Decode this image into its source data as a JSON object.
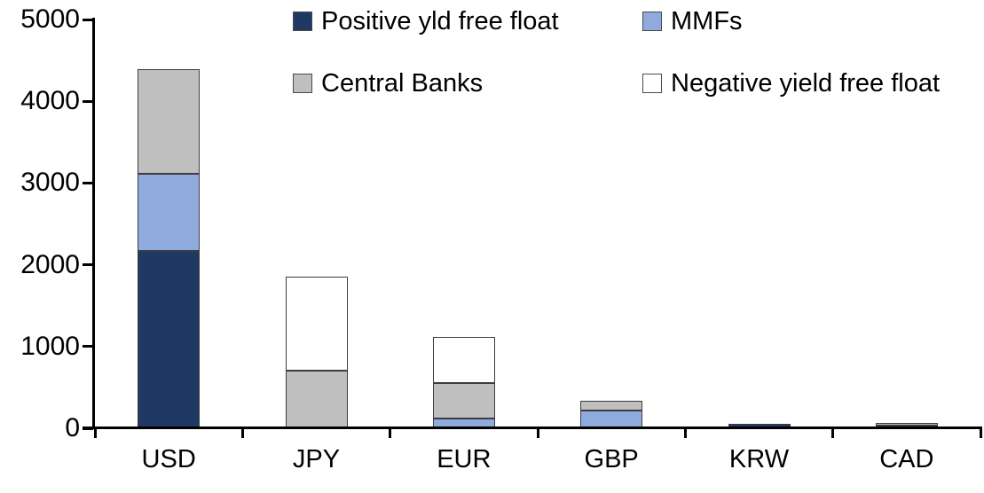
{
  "chart_data": {
    "type": "bar",
    "stacked": true,
    "title": "",
    "xlabel": "",
    "ylabel": "",
    "categories": [
      "USD",
      "JPY",
      "EUR",
      "GBP",
      "KRW",
      "CAD"
    ],
    "series": [
      {
        "name": "Positive yld free float",
        "color": "#1F3864",
        "values": [
          2170,
          0,
          0,
          0,
          50,
          35
        ]
      },
      {
        "name": "MMFs",
        "color": "#8FAADC",
        "values": [
          940,
          0,
          120,
          220,
          0,
          0
        ]
      },
      {
        "name": "Central Banks",
        "color": "#BFBFBF",
        "values": [
          1280,
          700,
          430,
          120,
          0,
          30
        ]
      },
      {
        "name": "Negative yield free float",
        "color": "#FFFFFF",
        "values": [
          0,
          1150,
          570,
          0,
          0,
          0
        ]
      }
    ],
    "totals": {
      "USD": 4390,
      "JPY": 1850,
      "EUR": 1120,
      "GBP": 340,
      "KRW": 50,
      "CAD": 65
    },
    "ylim": [
      0,
      5000
    ],
    "yticks": [
      0,
      1000,
      2000,
      3000,
      4000,
      5000
    ],
    "grid": false,
    "legend_position": "top-inside-two-columns",
    "axis_color": "#000000",
    "segment_border_color": "#3d3d3d"
  }
}
